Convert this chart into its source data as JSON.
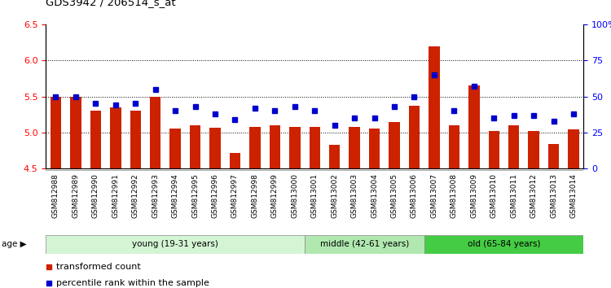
{
  "title": "GDS3942 / 206514_s_at",
  "samples": [
    "GSM812988",
    "GSM812989",
    "GSM812990",
    "GSM812991",
    "GSM812992",
    "GSM812993",
    "GSM812994",
    "GSM812995",
    "GSM812996",
    "GSM812997",
    "GSM812998",
    "GSM812999",
    "GSM813000",
    "GSM813001",
    "GSM813002",
    "GSM813003",
    "GSM813004",
    "GSM813005",
    "GSM813006",
    "GSM813007",
    "GSM813008",
    "GSM813009",
    "GSM813010",
    "GSM813011",
    "GSM813012",
    "GSM813013",
    "GSM813014"
  ],
  "bar_values": [
    5.5,
    5.5,
    5.3,
    5.35,
    5.3,
    5.5,
    5.06,
    5.1,
    5.07,
    4.72,
    5.08,
    5.1,
    5.08,
    5.08,
    4.83,
    5.08,
    5.06,
    5.15,
    5.37,
    6.2,
    5.1,
    5.65,
    5.02,
    5.1,
    5.02,
    4.84,
    5.04
  ],
  "dot_values": [
    50,
    50,
    45,
    44,
    45,
    55,
    40,
    43,
    38,
    34,
    42,
    40,
    43,
    40,
    30,
    35,
    35,
    43,
    50,
    65,
    40,
    57,
    35,
    37,
    37,
    33,
    38
  ],
  "ylim_left": [
    4.5,
    6.5
  ],
  "ylim_right": [
    0,
    100
  ],
  "yticks_left": [
    4.5,
    5.0,
    5.5,
    6.0,
    6.5
  ],
  "yticks_right": [
    0,
    25,
    50,
    75,
    100
  ],
  "ytick_labels_right": [
    "0",
    "25",
    "50",
    "75",
    "100%"
  ],
  "groups": [
    {
      "label": "young (19-31 years)",
      "start": 0,
      "end": 13,
      "color": "#d4f5d4"
    },
    {
      "label": "middle (42-61 years)",
      "start": 13,
      "end": 19,
      "color": "#b0e8b0"
    },
    {
      "label": "old (65-84 years)",
      "start": 19,
      "end": 27,
      "color": "#44cc44"
    }
  ],
  "bar_color": "#cc2200",
  "dot_color": "#0000cc",
  "bar_bottom": 4.5,
  "background_color": "#ffffff",
  "legend_items": [
    "transformed count",
    "percentile rank within the sample"
  ],
  "age_label": "age"
}
